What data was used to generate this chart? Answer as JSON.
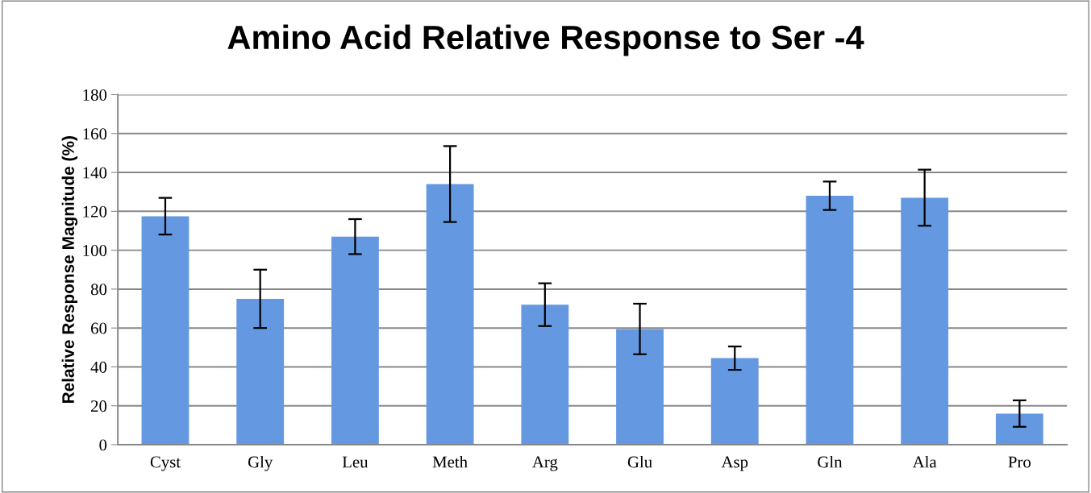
{
  "chart_data": {
    "type": "bar",
    "title": "Amino Acid Relative Response to Ser -4",
    "ylabel": "Relative Response Magnitude (%)",
    "categories": [
      "Cyst",
      "Gly",
      "Leu",
      "Meth",
      "Arg",
      "Glu",
      "Asp",
      "Gln",
      "Ala",
      "Pro"
    ],
    "values": [
      117.5,
      75,
      107,
      134,
      72,
      59.5,
      44.5,
      128,
      127,
      16
    ],
    "errors": [
      9.4,
      15,
      9,
      19.5,
      11,
      13,
      6,
      7.3,
      14.4,
      6.8
    ],
    "color": "#6499e2",
    "ylim": [
      0,
      180
    ],
    "yticks": [
      0,
      20,
      40,
      60,
      80,
      100,
      120,
      140,
      160,
      180
    ],
    "grid": "y"
  }
}
